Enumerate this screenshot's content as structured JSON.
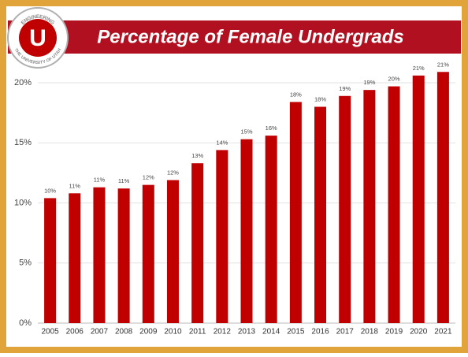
{
  "chart_data": {
    "type": "bar",
    "title": "Percentage of Female Undergrads",
    "categories": [
      "2005",
      "2006",
      "2007",
      "2008",
      "2009",
      "2010",
      "2011",
      "2012",
      "2013",
      "2014",
      "2015",
      "2016",
      "2017",
      "2018",
      "2019",
      "2020",
      "2021"
    ],
    "values": [
      10.4,
      10.8,
      11.3,
      11.2,
      11.5,
      11.9,
      13.3,
      14.4,
      15.3,
      15.6,
      18.4,
      18.0,
      18.9,
      19.4,
      19.7,
      20.6,
      20.9
    ],
    "value_labels": [
      "10%",
      "11%",
      "11%",
      "11%",
      "12%",
      "12%",
      "13%",
      "14%",
      "15%",
      "16%",
      "18%",
      "18%",
      "19%",
      "19%",
      "20%",
      "21%",
      "21%"
    ],
    "color": "#c00000",
    "ylim": [
      0,
      22
    ],
    "yticks": [
      {
        "value": 0,
        "label": "0%"
      },
      {
        "value": 5,
        "label": "5%"
      },
      {
        "value": 10,
        "label": "10%"
      },
      {
        "value": 15,
        "label": "15%"
      },
      {
        "value": 20,
        "label": "20%"
      }
    ],
    "grid": true
  },
  "logo": {
    "letter": "U",
    "top_text": "ENGINEERING",
    "bottom_text": "THE UNIVERSITY OF UTAH"
  }
}
